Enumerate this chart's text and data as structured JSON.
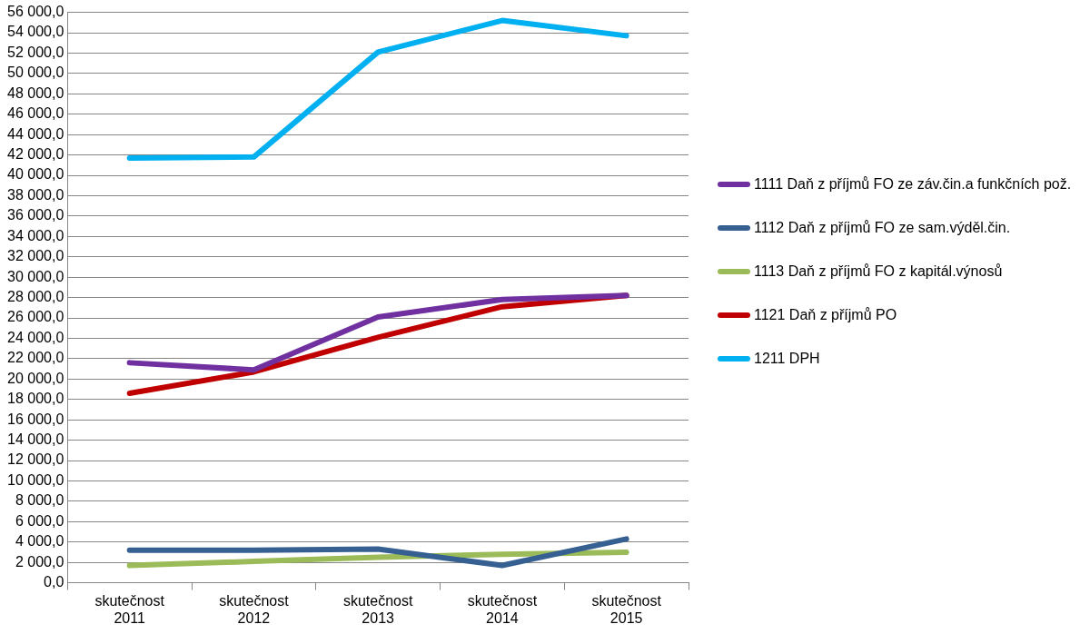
{
  "chart_data": {
    "type": "line",
    "categories": [
      "skutečnost 2011",
      "skutečnost 2012",
      "skutečnost 2013",
      "skutečnost 2014",
      "skutečnost 2015"
    ],
    "series": [
      {
        "name": "1111 Daň z příjmů FO ze záv.čin.a funkčních pož.",
        "color": "#7030a0",
        "values": [
          21600,
          20900,
          26100,
          27800,
          28200
        ]
      },
      {
        "name": "1112 Daň z příjmů FO ze sam.výděl.čin.",
        "color": "#366092",
        "values": [
          3200,
          3200,
          3300,
          1700,
          4300
        ]
      },
      {
        "name": "1113 Daň z příjmů FO z kapitál.výnosů",
        "color": "#9bbb59",
        "values": [
          1700,
          2100,
          2500,
          2800,
          3000
        ]
      },
      {
        "name": "1121 Daň z příjmů PO",
        "color": "#c00000",
        "values": [
          18600,
          20700,
          24100,
          27100,
          28200
        ]
      },
      {
        "name": "1211 DPH",
        "color": "#00b0f0",
        "values": [
          41700,
          41800,
          52100,
          55200,
          53700
        ]
      }
    ],
    "ylim": [
      0,
      56000
    ],
    "yticks": [
      {
        "value": 0,
        "label": "0,0"
      },
      {
        "value": 2000,
        "label": "2 000,0"
      },
      {
        "value": 4000,
        "label": "4 000,0"
      },
      {
        "value": 6000,
        "label": "6 000,0"
      },
      {
        "value": 8000,
        "label": "8 000,0"
      },
      {
        "value": 10000,
        "label": "10 000,0"
      },
      {
        "value": 12000,
        "label": "12 000,0"
      },
      {
        "value": 14000,
        "label": "14 000,0"
      },
      {
        "value": 16000,
        "label": "16 000,0"
      },
      {
        "value": 18000,
        "label": "18 000,0"
      },
      {
        "value": 20000,
        "label": "20 000,0"
      },
      {
        "value": 22000,
        "label": "22 000,0"
      },
      {
        "value": 24000,
        "label": "24 000,0"
      },
      {
        "value": 26000,
        "label": "26 000,0"
      },
      {
        "value": 28000,
        "label": "28 000,0"
      },
      {
        "value": 30000,
        "label": "30 000,0"
      },
      {
        "value": 32000,
        "label": "32 000,0"
      },
      {
        "value": 34000,
        "label": "34 000,0"
      },
      {
        "value": 36000,
        "label": "36 000,0"
      },
      {
        "value": 38000,
        "label": "38 000,0"
      },
      {
        "value": 40000,
        "label": "40 000,0"
      },
      {
        "value": 42000,
        "label": "42 000,0"
      },
      {
        "value": 44000,
        "label": "44 000,0"
      },
      {
        "value": 46000,
        "label": "46 000,0"
      },
      {
        "value": 48000,
        "label": "48 000,0"
      },
      {
        "value": 50000,
        "label": "50 000,0"
      },
      {
        "value": 52000,
        "label": "52 000,0"
      },
      {
        "value": 54000,
        "label": "54 000,0"
      },
      {
        "value": 56000,
        "label": "56 000,0"
      }
    ],
    "grid": "y",
    "legend": "right",
    "marker": "none",
    "line_style": "solid"
  }
}
